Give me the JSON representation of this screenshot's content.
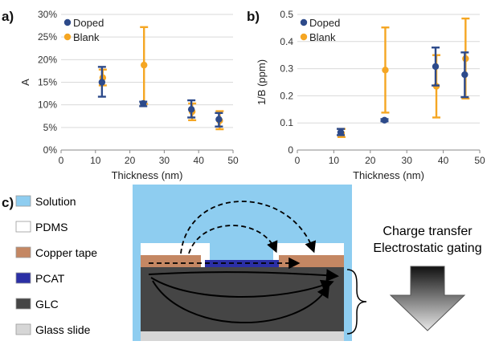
{
  "panel_labels": {
    "a": "a)",
    "b": "b)",
    "c": "c)"
  },
  "colors": {
    "doped": "#2d4a8a",
    "blank": "#f5a623",
    "solution": "#8ecdf0",
    "pdms": "#ffffff",
    "copper_tape": "#c48763",
    "pcat": "#2b2fa5",
    "glc": "#454545",
    "glass_slide": "#d6d6d6",
    "grid": "#d9d9d9"
  },
  "chart_data": [
    {
      "type": "scatter",
      "panel": "a)",
      "xlabel": "Thickness (nm)",
      "ylabel": "A",
      "xlim": [
        0,
        50
      ],
      "ylim": [
        0,
        0.3
      ],
      "xticks": [
        0,
        10,
        20,
        30,
        40,
        50
      ],
      "yticks": [
        0,
        0.05,
        0.1,
        0.15,
        0.2,
        0.25,
        0.3
      ],
      "ytick_labels": [
        "0%",
        "5%",
        "10%",
        "15%",
        "20%",
        "25%",
        "30%"
      ],
      "grid": "horizontal",
      "legend": "top-left",
      "series": [
        {
          "name": "Doped",
          "color": "#2d4a8a",
          "points": [
            {
              "x": 12,
              "y": 0.15,
              "lo": 0.118,
              "hi": 0.184
            },
            {
              "x": 24,
              "y": 0.103,
              "lo": 0.097,
              "hi": 0.107
            },
            {
              "x": 38,
              "y": 0.09,
              "lo": 0.072,
              "hi": 0.11
            },
            {
              "x": 46,
              "y": 0.068,
              "lo": 0.052,
              "hi": 0.082
            }
          ]
        },
        {
          "name": "Blank",
          "color": "#f5a623",
          "points": [
            {
              "x": 12,
              "y": 0.16,
              "lo": 0.143,
              "hi": 0.178
            },
            {
              "x": 24,
              "y": 0.188,
              "lo": 0.102,
              "hi": 0.272
            },
            {
              "x": 38,
              "y": 0.085,
              "lo": 0.066,
              "hi": 0.103
            },
            {
              "x": 46,
              "y": 0.065,
              "lo": 0.046,
              "hi": 0.086
            }
          ]
        }
      ]
    },
    {
      "type": "scatter",
      "panel": "b)",
      "xlabel": "Thickness (nm)",
      "ylabel": "1/B (ppm)",
      "xlim": [
        0,
        50
      ],
      "ylim": [
        0,
        0.5
      ],
      "xticks": [
        0,
        10,
        20,
        30,
        40,
        50
      ],
      "yticks": [
        0,
        0.1,
        0.2,
        0.3,
        0.4,
        0.5
      ],
      "ytick_labels": [
        "0",
        "0.1",
        "0.2",
        "0.3",
        "0.4",
        "0.5"
      ],
      "grid": "horizontal",
      "legend": "top-left",
      "series": [
        {
          "name": "Doped",
          "color": "#2d4a8a",
          "points": [
            {
              "x": 12,
              "y": 0.065,
              "lo": 0.055,
              "hi": 0.078
            },
            {
              "x": 24,
              "y": 0.11,
              "lo": 0.106,
              "hi": 0.114
            },
            {
              "x": 38,
              "y": 0.308,
              "lo": 0.238,
              "hi": 0.378
            },
            {
              "x": 46,
              "y": 0.278,
              "lo": 0.195,
              "hi": 0.36
            }
          ]
        },
        {
          "name": "Blank",
          "color": "#f5a623",
          "points": [
            {
              "x": 12,
              "y": 0.062,
              "lo": 0.048,
              "hi": 0.078
            },
            {
              "x": 24,
              "y": 0.295,
              "lo": 0.138,
              "hi": 0.452
            },
            {
              "x": 38,
              "y": 0.235,
              "lo": 0.12,
              "hi": 0.35
            },
            {
              "x": 46,
              "y": 0.337,
              "lo": 0.19,
              "hi": 0.485
            }
          ]
        }
      ]
    }
  ],
  "diagram": {
    "legend": [
      {
        "key": "solution",
        "label": "Solution"
      },
      {
        "key": "pdms",
        "label": "PDMS"
      },
      {
        "key": "copper_tape",
        "label": "Copper tape"
      },
      {
        "key": "pcat",
        "label": "PCAT"
      },
      {
        "key": "glc",
        "label": "GLC"
      },
      {
        "key": "glass_slide",
        "label": "Glass slide"
      }
    ],
    "right_text": [
      "Charge transfer",
      "Electrostatic gating"
    ]
  }
}
